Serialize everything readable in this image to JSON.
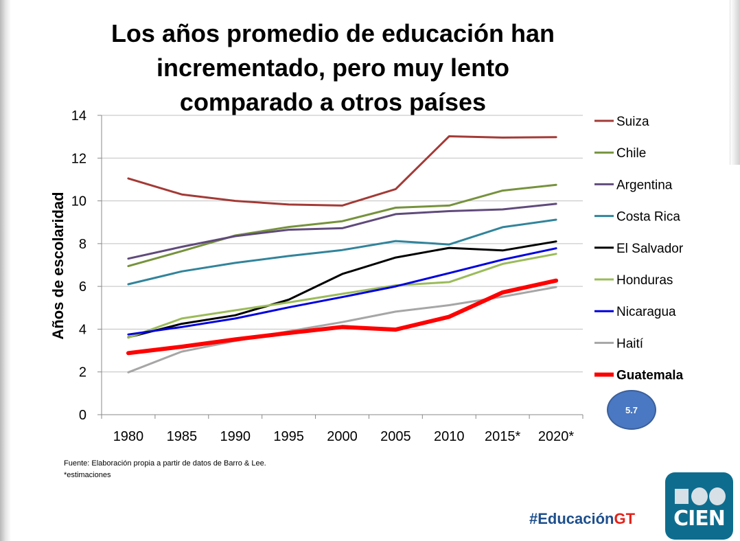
{
  "title": "Los años promedio de educación han incrementado, pero muy lento comparado a otros países",
  "source": {
    "line1": "Fuente: Elaboración propia a partir de datos de Barro & Lee.",
    "line2": "*estimaciones"
  },
  "hashtag": {
    "prefix": "#Educación",
    "suffix": "GT"
  },
  "logo": {
    "name": "CIEN"
  },
  "callout": {
    "value": "5.7"
  },
  "chart_data": {
    "type": "line",
    "title": "Los años promedio de educación han incrementado, pero muy lento comparado a otros países",
    "xlabel": "",
    "ylabel": "Años de escolaridad",
    "categories": [
      "1980",
      "1985",
      "1990",
      "1995",
      "2000",
      "2005",
      "2010",
      "2015*",
      "2020*"
    ],
    "ylim": [
      0,
      14
    ],
    "yticks": [
      0,
      2,
      4,
      6,
      8,
      10,
      12,
      14
    ],
    "grid": true,
    "legend_position": "right",
    "series": [
      {
        "name": "Suiza",
        "color": "#a33a36",
        "width": 3,
        "bold": false,
        "values": [
          11.05,
          10.3,
          10.0,
          9.83,
          9.78,
          10.55,
          13.02,
          12.96,
          12.98
        ]
      },
      {
        "name": "Chile",
        "color": "#76923c",
        "width": 3,
        "bold": false,
        "values": [
          6.95,
          7.65,
          8.38,
          8.78,
          9.05,
          9.68,
          9.78,
          10.48,
          10.75
        ]
      },
      {
        "name": "Argentina",
        "color": "#604a7b",
        "width": 3,
        "bold": false,
        "values": [
          7.3,
          7.85,
          8.35,
          8.65,
          8.72,
          9.38,
          9.52,
          9.6,
          9.86
        ]
      },
      {
        "name": "Costa Rica",
        "color": "#31849b",
        "width": 3,
        "bold": false,
        "values": [
          6.1,
          6.7,
          7.1,
          7.42,
          7.7,
          8.12,
          7.96,
          8.77,
          9.12
        ]
      },
      {
        "name": "El Salvador",
        "color": "#000000",
        "width": 3,
        "bold": false,
        "values": [
          3.62,
          4.25,
          4.65,
          5.38,
          6.58,
          7.35,
          7.8,
          7.68,
          8.1
        ]
      },
      {
        "name": "Honduras",
        "color": "#9bbb59",
        "width": 3,
        "bold": false,
        "values": [
          3.6,
          4.5,
          4.88,
          5.25,
          5.65,
          6.05,
          6.2,
          7.05,
          7.52
        ]
      },
      {
        "name": "Nicaragua",
        "color": "#0000e0",
        "width": 3,
        "bold": false,
        "values": [
          3.75,
          4.1,
          4.5,
          5.02,
          5.5,
          6.0,
          6.62,
          7.25,
          7.78
        ]
      },
      {
        "name": "Haití",
        "color": "#a6a6a6",
        "width": 3,
        "bold": false,
        "values": [
          1.98,
          2.95,
          3.45,
          3.9,
          4.33,
          4.82,
          5.12,
          5.52,
          5.97
        ]
      },
      {
        "name": "Guatemala",
        "color": "#ff0000",
        "width": 6,
        "bold": true,
        "values": [
          2.88,
          3.18,
          3.52,
          3.82,
          4.1,
          3.98,
          4.58,
          5.72,
          6.27
        ]
      }
    ]
  }
}
